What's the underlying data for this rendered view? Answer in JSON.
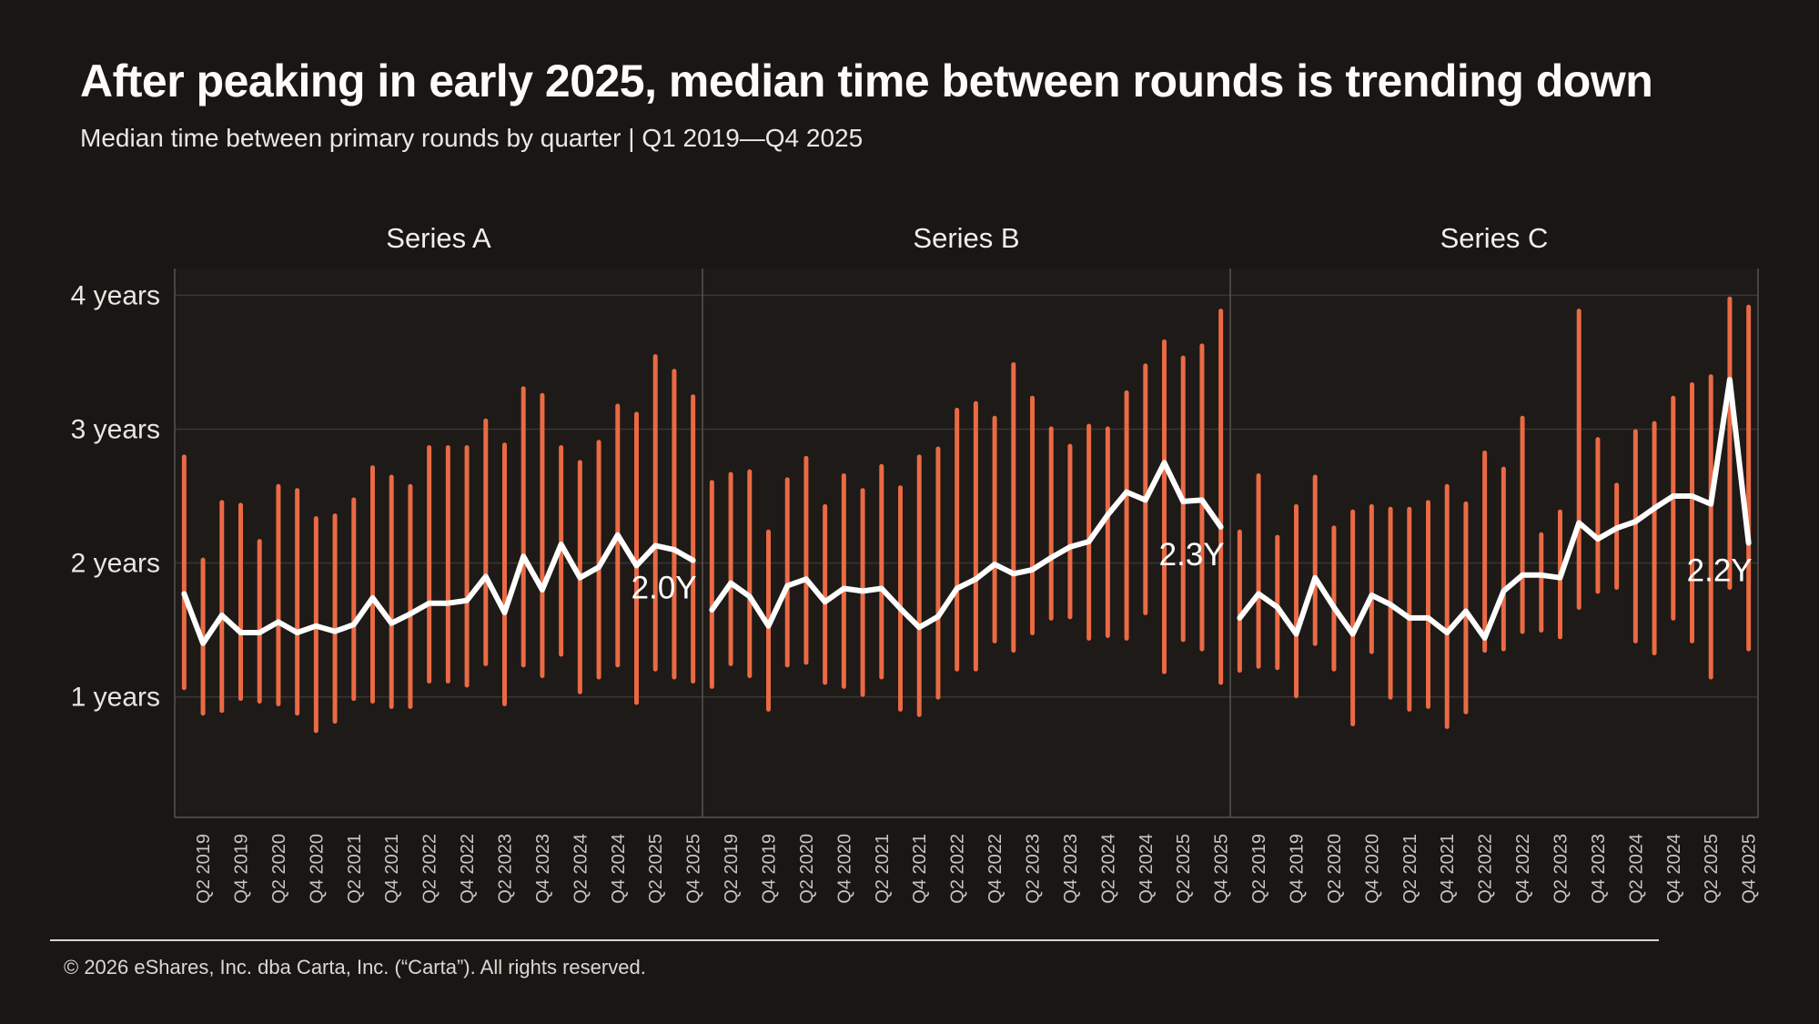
{
  "page": {
    "title": "After peaking in early 2025, median time between rounds is trending down",
    "subtitle": "Median time between primary rounds by quarter | Q1 2019—Q4 2025",
    "footer": "© 2026 eShares, Inc. dba Carta, Inc. (“Carta”). All rights reserved."
  },
  "chart_data": {
    "type": "line",
    "subtype": "median-line-with-range-bars",
    "unit": "years",
    "grid": true,
    "ylim": [
      0.1,
      4.2
    ],
    "y_ticks": [
      {
        "value": 1,
        "label": "1 years"
      },
      {
        "value": 2,
        "label": "2 years"
      },
      {
        "value": 3,
        "label": "3 years"
      },
      {
        "value": 4,
        "label": "4 years"
      }
    ],
    "categories": [
      "Q1 2019",
      "Q2 2019",
      "Q3 2019",
      "Q4 2019",
      "Q1 2020",
      "Q2 2020",
      "Q3 2020",
      "Q4 2020",
      "Q1 2021",
      "Q2 2021",
      "Q3 2021",
      "Q4 2021",
      "Q1 2022",
      "Q2 2022",
      "Q3 2022",
      "Q4 2022",
      "Q1 2023",
      "Q2 2023",
      "Q3 2023",
      "Q4 2023",
      "Q1 2024",
      "Q2 2024",
      "Q3 2024",
      "Q4 2024",
      "Q1 2025",
      "Q2 2025",
      "Q3 2025",
      "Q4 2025"
    ],
    "x_tick_labels": [
      "Q2 2019",
      "Q4 2019",
      "Q2 2020",
      "Q4 2020",
      "Q2 2021",
      "Q4 2021",
      "Q2 2022",
      "Q4 2022",
      "Q2 2023",
      "Q4 2023",
      "Q2 2024",
      "Q4 2024",
      "Q2 2025",
      "Q4 2025"
    ],
    "colors": {
      "range_bar": "#EA6A44",
      "median_line": "#FFFFFF",
      "gridline": "#3a3632",
      "axis": "#565250",
      "tick_text": "#c9c5c1",
      "label_text": "#e9e6e2"
    },
    "panels": [
      {
        "label": "Series A",
        "end_annotation": "2.0Y",
        "median": [
          1.77,
          1.4,
          1.61,
          1.48,
          1.48,
          1.56,
          1.48,
          1.53,
          1.49,
          1.54,
          1.74,
          1.55,
          1.62,
          1.7,
          1.7,
          1.72,
          1.9,
          1.63,
          2.05,
          1.8,
          2.14,
          1.89,
          1.97,
          2.21,
          1.98,
          2.13,
          2.1,
          2.02
        ],
        "range_high": [
          2.81,
          2.04,
          2.47,
          2.45,
          2.18,
          2.59,
          2.56,
          2.35,
          2.37,
          2.49,
          2.73,
          2.66,
          2.59,
          2.88,
          2.88,
          2.88,
          3.08,
          2.9,
          3.32,
          3.27,
          2.88,
          2.77,
          2.92,
          3.19,
          3.13,
          3.56,
          3.45,
          3.26
        ],
        "range_low": [
          1.05,
          0.86,
          0.88,
          0.97,
          0.95,
          0.93,
          0.86,
          0.73,
          0.8,
          0.97,
          0.95,
          0.91,
          0.91,
          1.1,
          1.1,
          1.07,
          1.23,
          0.93,
          1.22,
          1.14,
          1.3,
          1.02,
          1.13,
          1.22,
          0.94,
          1.19,
          1.13,
          1.1
        ]
      },
      {
        "label": "Series B",
        "end_annotation": "2.3Y",
        "median": [
          1.65,
          1.85,
          1.75,
          1.53,
          1.83,
          1.88,
          1.71,
          1.81,
          1.79,
          1.81,
          1.66,
          1.52,
          1.6,
          1.81,
          1.88,
          1.99,
          1.92,
          1.95,
          2.04,
          2.12,
          2.16,
          2.36,
          2.53,
          2.47,
          2.75,
          2.46,
          2.47,
          2.27
        ],
        "range_high": [
          2.62,
          2.68,
          2.7,
          2.25,
          2.64,
          2.8,
          2.44,
          2.67,
          2.56,
          2.74,
          2.58,
          2.81,
          2.87,
          3.16,
          3.21,
          3.1,
          3.5,
          3.25,
          3.02,
          2.89,
          3.04,
          3.02,
          3.29,
          3.49,
          3.67,
          3.55,
          3.64,
          3.9
        ],
        "range_low": [
          1.06,
          1.23,
          1.14,
          0.89,
          1.22,
          1.24,
          1.09,
          1.06,
          1.0,
          1.13,
          0.89,
          0.85,
          0.98,
          1.19,
          1.19,
          1.4,
          1.33,
          1.46,
          1.57,
          1.58,
          1.42,
          1.44,
          1.42,
          1.61,
          1.17,
          1.41,
          1.34,
          1.09
        ]
      },
      {
        "label": "Series C",
        "end_annotation": "2.2Y",
        "median": [
          1.59,
          1.77,
          1.67,
          1.47,
          1.89,
          1.67,
          1.47,
          1.76,
          1.69,
          1.59,
          1.59,
          1.48,
          1.64,
          1.44,
          1.79,
          1.91,
          1.91,
          1.89,
          2.3,
          2.18,
          2.26,
          2.31,
          2.41,
          2.5,
          2.5,
          2.44,
          3.37,
          2.15
        ],
        "range_high": [
          2.25,
          2.67,
          2.21,
          2.44,
          2.66,
          2.28,
          2.4,
          2.44,
          2.42,
          2.42,
          2.47,
          2.59,
          2.46,
          2.84,
          2.72,
          3.1,
          2.23,
          2.4,
          3.9,
          2.94,
          2.6,
          3.0,
          3.06,
          3.25,
          3.35,
          3.41,
          3.99,
          3.93
        ],
        "range_low": [
          1.18,
          1.21,
          1.2,
          0.99,
          1.38,
          1.19,
          0.78,
          1.32,
          0.98,
          0.89,
          0.91,
          0.76,
          0.87,
          1.33,
          1.34,
          1.47,
          1.48,
          1.43,
          1.65,
          1.77,
          1.8,
          1.4,
          1.31,
          1.57,
          1.4,
          1.13,
          1.8,
          1.34
        ]
      }
    ]
  }
}
